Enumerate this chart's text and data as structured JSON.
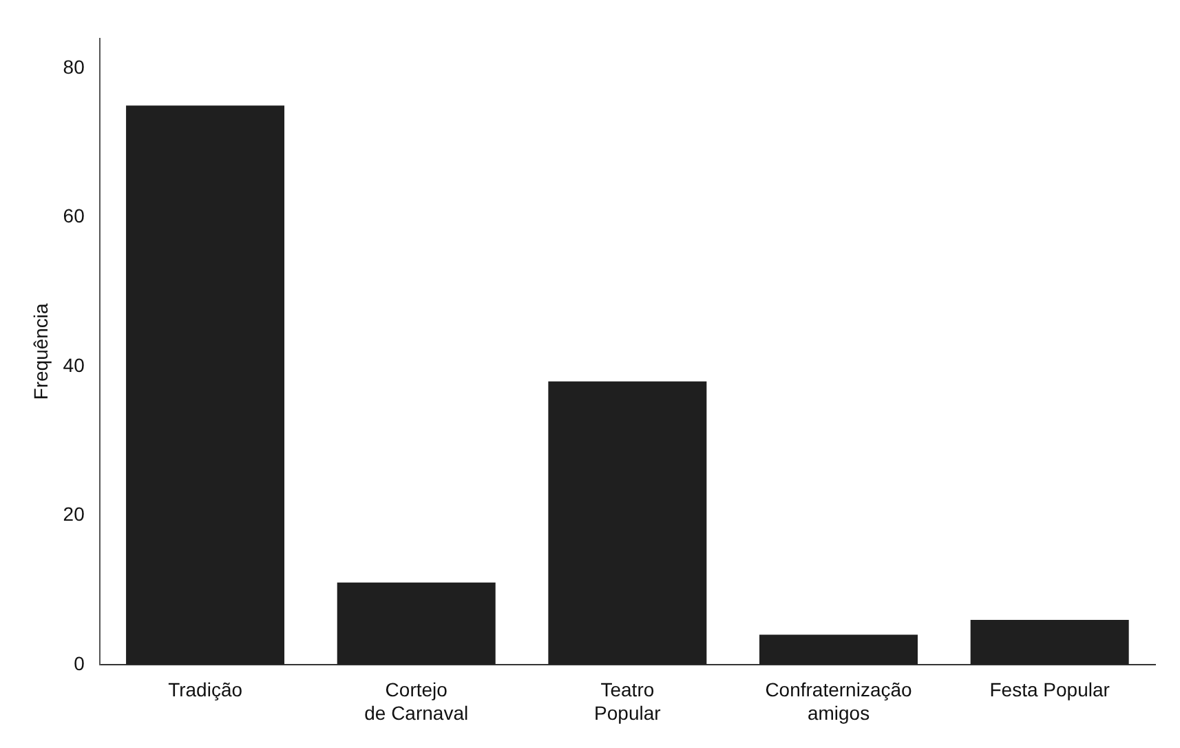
{
  "chart_data": {
    "type": "bar",
    "ylabel": "Frequência",
    "categories": [
      "Tradição",
      "Cortejo\nde Carnaval",
      "Teatro\nPopular",
      "Confraternização\namigos",
      "Festa Popular"
    ],
    "values": [
      75,
      11,
      38,
      4,
      6
    ],
    "color": "#1f1f1f",
    "ylim": [
      0,
      84
    ],
    "yticks": [
      0,
      20,
      40,
      60,
      80
    ],
    "grid": false,
    "legend": false
  }
}
